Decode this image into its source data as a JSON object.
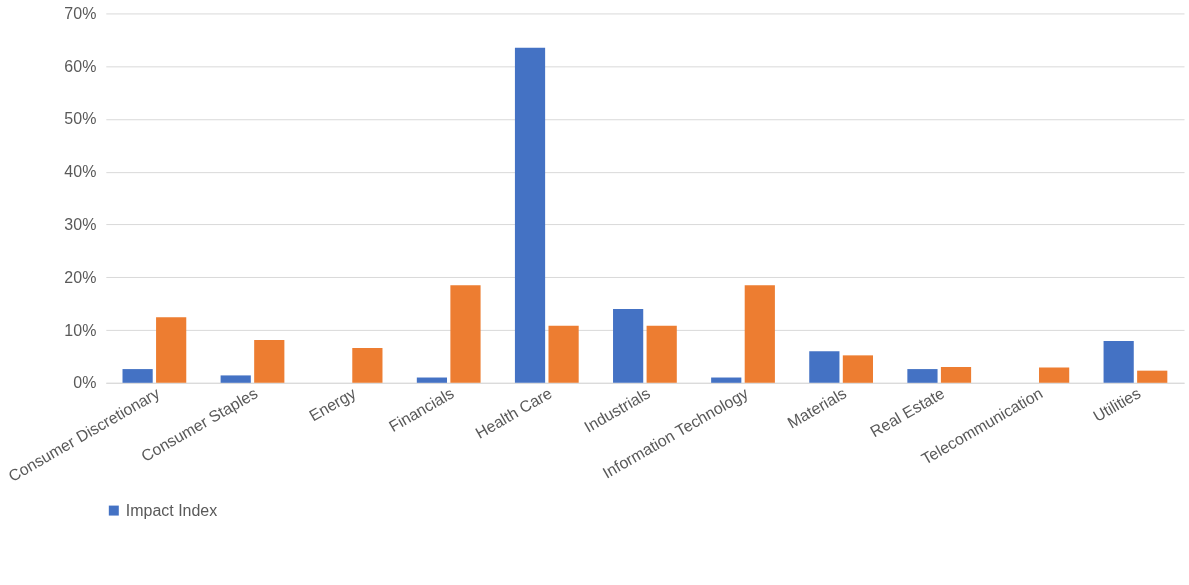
{
  "chart_data": {
    "type": "bar",
    "categories": [
      "Consumer Discretionary",
      "Consumer Staples",
      "Energy",
      "Financials",
      "Health Care",
      "Industrials",
      "Information Technology",
      "Materials",
      "Real Estate",
      "Telecommunication",
      "Utilities"
    ],
    "series": [
      {
        "name": "Impact Index",
        "color": "#4472c4",
        "values": [
          2.6,
          1.4,
          null,
          1.0,
          63.5,
          14.0,
          1.0,
          6.0,
          2.6,
          null,
          7.9
        ]
      },
      {
        "color": "#ed7d31",
        "values": [
          12.4,
          8.1,
          6.6,
          18.5,
          10.8,
          10.8,
          18.5,
          5.2,
          3.0,
          2.9,
          2.3
        ]
      }
    ],
    "ylim": [
      0,
      70
    ],
    "yticks": [
      {
        "value": 0,
        "label": "0%"
      },
      {
        "value": 10,
        "label": "10%"
      },
      {
        "value": 20,
        "label": "20%"
      },
      {
        "value": 30,
        "label": "30%"
      },
      {
        "value": 40,
        "label": "40%"
      },
      {
        "value": 50,
        "label": "50%"
      },
      {
        "value": 60,
        "label": "60%"
      },
      {
        "value": 70,
        "label": "70%"
      }
    ],
    "grid": "y",
    "legend": "bottom"
  }
}
